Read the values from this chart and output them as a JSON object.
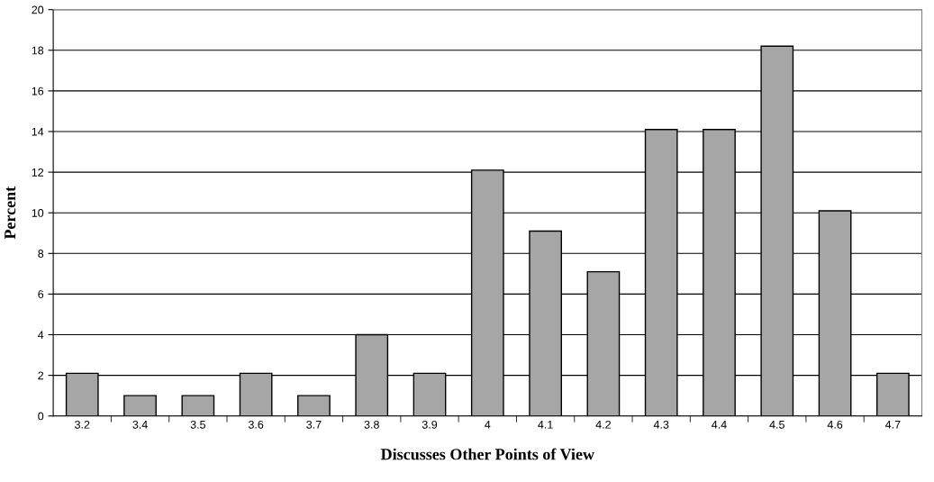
{
  "chart_data": {
    "type": "bar",
    "xlabel": "Discusses Other Points of View",
    "ylabel": "Percent",
    "categories": [
      "3.2",
      "3.4",
      "3.5",
      "3.6",
      "3.7",
      "3.8",
      "3.9",
      "4",
      "4.1",
      "4.2",
      "4.3",
      "4.4",
      "4.5",
      "4.6",
      "4.7"
    ],
    "values": [
      2.1,
      1,
      1,
      2.1,
      1,
      4,
      2.1,
      12.1,
      9.1,
      7.1,
      14.1,
      14.1,
      18.2,
      10.1,
      2.1
    ],
    "color": "#a6a6a6",
    "ylim": [
      0,
      20
    ],
    "yticks": [
      0,
      2,
      4,
      6,
      8,
      10,
      12,
      14,
      16,
      18,
      20
    ],
    "grid": "y",
    "legend": false
  }
}
